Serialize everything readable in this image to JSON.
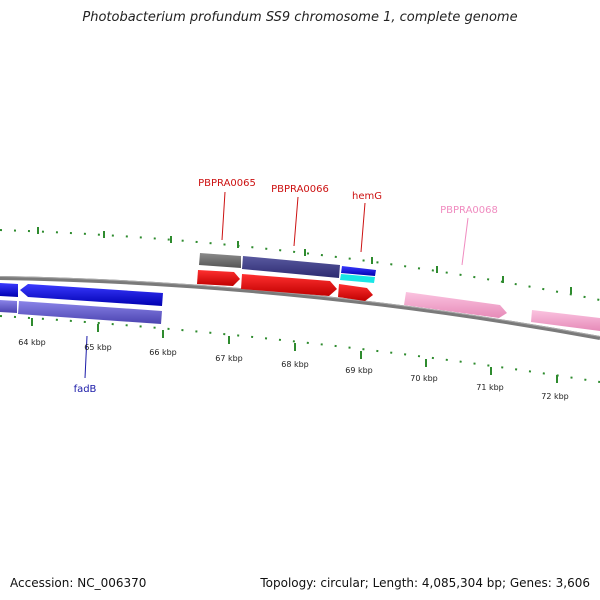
{
  "title": "Photobacterium profundum SS9 chromosome 1, complete genome",
  "footer": {
    "accession": "Accession: NC_006370",
    "summary": "Topology: circular; Length: 4,085,304 bp; Genes: 3,606"
  },
  "colors": {
    "background": "#ffffff",
    "backbone": "#7a7a7a",
    "tick": "#2e8b2e",
    "blue": "#1010e0",
    "slate": "#5a52c8",
    "red": "#ee1111",
    "pink": "#f7a6d0",
    "gray": "#777777",
    "cyan": "#19e6e6"
  },
  "kbp_labels": [
    "64 kbp",
    "65 kbp",
    "66 kbp",
    "67 kbp",
    "68 kbp",
    "69 kbp",
    "70 kbp",
    "71 kbp",
    "72 kbp"
  ],
  "gene_labels": [
    {
      "name": "PBPRA0065",
      "color": "#cc1111"
    },
    {
      "name": "PBPRA0066",
      "color": "#cc1111"
    },
    {
      "name": "hemG",
      "color": "#cc1111"
    },
    {
      "name": "PBPRA0068",
      "color": "#f08cc0"
    },
    {
      "name": "fadB",
      "color": "#1a1aa8"
    }
  ]
}
